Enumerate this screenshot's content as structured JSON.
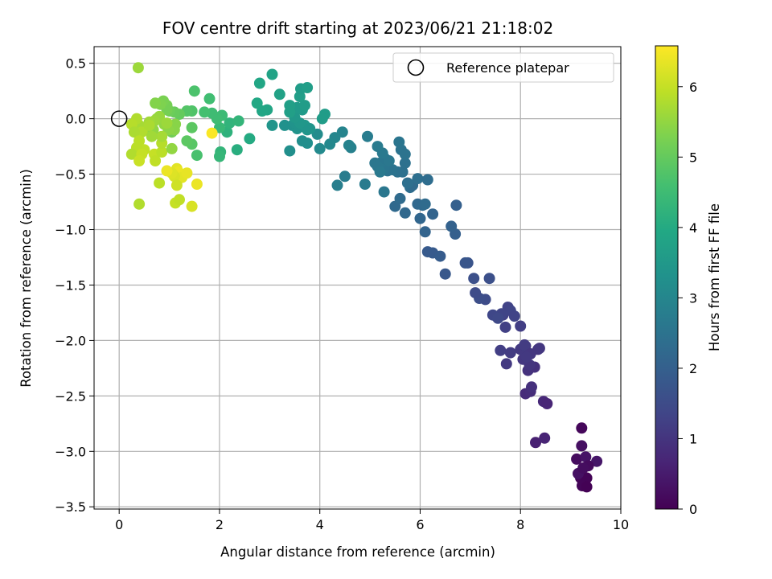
{
  "chart_data": {
    "type": "scatter",
    "title": "FOV centre drift starting at 2023/06/21 21:18:02",
    "xlabel": "Angular distance from reference (arcmin)",
    "ylabel": "Rotation from reference (arcmin)",
    "xlim": [
      -0.5,
      10
    ],
    "ylim": [
      -3.52,
      0.65
    ],
    "x_ticks": [
      0,
      2,
      4,
      6,
      8,
      10
    ],
    "x_tick_labels": [
      "0",
      "2",
      "4",
      "6",
      "8",
      "10"
    ],
    "y_ticks": [
      0.5,
      0.0,
      -0.5,
      -1.0,
      -1.5,
      -2.0,
      -2.5,
      -3.0,
      -3.5
    ],
    "y_tick_labels": [
      "0.5",
      "0.0",
      "−0.5",
      "−1.0",
      "−1.5",
      "−2.0",
      "−2.5",
      "−3.0",
      "−3.5"
    ],
    "grid": true,
    "legend": {
      "placement": "upper right",
      "entries": [
        "Reference platepar"
      ]
    },
    "reference_point": {
      "label": "Reference platepar",
      "x": 0.0,
      "y": 0.0,
      "marker": "open-circle"
    },
    "colorbar": {
      "label": "Hours from first FF file",
      "colormap": "viridis",
      "range": [
        0,
        6.58
      ],
      "ticks": [
        0,
        1,
        2,
        3,
        4,
        5,
        6
      ],
      "tick_labels": [
        "0",
        "1",
        "2",
        "3",
        "4",
        "5",
        "6"
      ]
    },
    "series": [
      {
        "columns": [
          "x",
          "y",
          "hours"
        ],
        "points": [
          [
            9.22,
            -2.79,
            0.12
          ],
          [
            9.12,
            -3.07,
            0.2
          ],
          [
            9.22,
            -2.95,
            0.28
          ],
          [
            9.3,
            -3.05,
            0.35
          ],
          [
            9.52,
            -3.09,
            0.4
          ],
          [
            9.35,
            -3.13,
            0.18
          ],
          [
            9.2,
            -3.24,
            0.1
          ],
          [
            9.32,
            -3.24,
            0.05
          ],
          [
            9.23,
            -3.31,
            0.08
          ],
          [
            9.32,
            -3.32,
            0.02
          ],
          [
            9.15,
            -3.2,
            0.3
          ],
          [
            9.25,
            -3.15,
            0.22
          ],
          [
            8.3,
            -2.92,
            0.6
          ],
          [
            8.48,
            -2.88,
            0.65
          ],
          [
            8.46,
            -2.55,
            0.75
          ],
          [
            8.53,
            -2.57,
            0.7
          ],
          [
            8.1,
            -2.48,
            0.8
          ],
          [
            8.2,
            -2.46,
            0.85
          ],
          [
            8.22,
            -2.42,
            0.9
          ],
          [
            8.15,
            -2.27,
            0.95
          ],
          [
            8.28,
            -2.24,
            0.9
          ],
          [
            8.18,
            -2.22,
            1.0
          ],
          [
            8.05,
            -2.17,
            1.05
          ],
          [
            8.0,
            -2.08,
            1.1
          ],
          [
            8.1,
            -2.05,
            1.1
          ],
          [
            8.35,
            -2.08,
            1.0
          ],
          [
            8.38,
            -2.07,
            1.05
          ],
          [
            8.08,
            -2.04,
            1.15
          ],
          [
            8.2,
            -2.12,
            1.05
          ],
          [
            8.12,
            -2.15,
            1.1
          ],
          [
            7.72,
            -2.21,
            1.1
          ],
          [
            7.6,
            -2.09,
            1.2
          ],
          [
            7.8,
            -2.11,
            1.15
          ],
          [
            8.0,
            -1.87,
            1.2
          ],
          [
            7.65,
            -1.77,
            1.25
          ],
          [
            7.7,
            -1.88,
            1.25
          ],
          [
            7.75,
            -1.7,
            1.3
          ],
          [
            7.8,
            -1.73,
            1.35
          ],
          [
            7.88,
            -1.78,
            1.3
          ],
          [
            7.62,
            -1.76,
            1.35
          ],
          [
            7.45,
            -1.77,
            1.4
          ],
          [
            7.55,
            -1.8,
            1.45
          ],
          [
            7.3,
            -1.63,
            1.5
          ],
          [
            7.18,
            -1.62,
            1.55
          ],
          [
            7.1,
            -1.57,
            1.5
          ],
          [
            7.38,
            -1.44,
            1.6
          ],
          [
            7.07,
            -1.44,
            1.6
          ],
          [
            6.95,
            -1.3,
            1.7
          ],
          [
            6.9,
            -1.3,
            1.75
          ],
          [
            6.5,
            -1.4,
            1.8
          ],
          [
            6.25,
            -1.21,
            1.85
          ],
          [
            6.4,
            -1.24,
            1.9
          ],
          [
            6.15,
            -1.2,
            1.85
          ],
          [
            6.7,
            -1.04,
            2.0
          ],
          [
            6.62,
            -0.97,
            2.05
          ],
          [
            6.1,
            -1.02,
            2.1
          ],
          [
            6.0,
            -0.9,
            2.15
          ],
          [
            6.25,
            -0.86,
            2.1
          ],
          [
            6.72,
            -0.78,
            2.0
          ],
          [
            5.7,
            -0.85,
            2.2
          ],
          [
            5.5,
            -0.79,
            2.25
          ],
          [
            5.6,
            -0.72,
            2.3
          ],
          [
            5.95,
            -0.77,
            2.2
          ],
          [
            6.05,
            -0.78,
            2.25
          ],
          [
            6.1,
            -0.77,
            2.3
          ],
          [
            5.8,
            -0.62,
            2.35
          ],
          [
            5.85,
            -0.6,
            2.3
          ],
          [
            5.75,
            -0.58,
            2.4
          ],
          [
            5.95,
            -0.54,
            2.4
          ],
          [
            6.15,
            -0.55,
            2.35
          ],
          [
            5.55,
            -0.48,
            2.45
          ],
          [
            5.45,
            -0.46,
            2.5
          ],
          [
            5.35,
            -0.47,
            2.5
          ],
          [
            5.65,
            -0.48,
            2.45
          ],
          [
            5.28,
            -0.45,
            2.55
          ],
          [
            5.1,
            -0.4,
            2.6
          ],
          [
            5.2,
            -0.4,
            2.6
          ],
          [
            5.3,
            -0.36,
            2.55
          ],
          [
            5.38,
            -0.38,
            2.6
          ],
          [
            5.25,
            -0.31,
            2.65
          ],
          [
            5.62,
            -0.28,
            2.5
          ],
          [
            5.7,
            -0.4,
            2.45
          ],
          [
            5.7,
            -0.32,
            2.5
          ],
          [
            5.58,
            -0.21,
            2.55
          ],
          [
            5.28,
            -0.66,
            2.6
          ],
          [
            4.9,
            -0.59,
            2.7
          ],
          [
            4.5,
            -0.52,
            2.75
          ],
          [
            4.35,
            -0.6,
            2.8
          ],
          [
            5.15,
            -0.43,
            2.6
          ],
          [
            5.2,
            -0.48,
            2.65
          ],
          [
            4.95,
            -0.16,
            2.75
          ],
          [
            5.15,
            -0.25,
            2.7
          ],
          [
            4.62,
            -0.26,
            2.85
          ],
          [
            4.58,
            -0.24,
            2.9
          ],
          [
            4.45,
            -0.12,
            2.95
          ],
          [
            4.3,
            -0.17,
            3.0
          ],
          [
            4.2,
            -0.23,
            3.05
          ],
          [
            4.0,
            -0.27,
            3.1
          ],
          [
            3.95,
            -0.14,
            3.15
          ],
          [
            3.75,
            -0.22,
            3.2
          ],
          [
            3.65,
            -0.2,
            3.2
          ],
          [
            3.4,
            -0.29,
            3.25
          ],
          [
            3.3,
            -0.06,
            3.3
          ],
          [
            3.45,
            -0.06,
            3.3
          ],
          [
            3.55,
            -0.09,
            3.35
          ],
          [
            3.5,
            -0.04,
            3.35
          ],
          [
            3.05,
            -0.06,
            3.4
          ],
          [
            3.8,
            -0.09,
            3.4
          ],
          [
            3.7,
            -0.06,
            3.45
          ],
          [
            3.75,
            -0.1,
            3.4
          ],
          [
            3.6,
            -0.04,
            3.45
          ],
          [
            3.5,
            0.01,
            3.5
          ],
          [
            3.65,
            0.08,
            3.55
          ],
          [
            3.55,
            0.1,
            3.55
          ],
          [
            3.7,
            0.12,
            3.6
          ],
          [
            3.6,
            0.2,
            3.65
          ],
          [
            3.62,
            0.27,
            3.6
          ],
          [
            3.75,
            0.28,
            3.65
          ],
          [
            4.1,
            0.04,
            3.6
          ],
          [
            4.05,
            0.0,
            3.6
          ],
          [
            3.4,
            0.12,
            3.7
          ],
          [
            3.4,
            0.06,
            3.7
          ],
          [
            3.2,
            0.22,
            3.75
          ],
          [
            3.05,
            0.4,
            3.8
          ],
          [
            2.95,
            0.08,
            3.85
          ],
          [
            2.85,
            0.07,
            3.9
          ],
          [
            2.8,
            0.32,
            3.9
          ],
          [
            2.75,
            0.14,
            3.95
          ],
          [
            2.6,
            -0.18,
            4.0
          ],
          [
            2.35,
            -0.28,
            4.1
          ],
          [
            2.15,
            -0.12,
            4.2
          ],
          [
            2.2,
            -0.04,
            4.25
          ],
          [
            2.38,
            -0.02,
            4.3
          ],
          [
            2.02,
            -0.3,
            4.3
          ],
          [
            2.0,
            -0.34,
            4.35
          ],
          [
            2.0,
            -0.08,
            4.4
          ],
          [
            2.05,
            0.03,
            4.45
          ],
          [
            1.95,
            0.0,
            4.5
          ],
          [
            1.85,
            0.05,
            4.5
          ],
          [
            1.8,
            0.18,
            4.55
          ],
          [
            1.7,
            0.06,
            4.6
          ],
          [
            1.55,
            -0.33,
            4.65
          ],
          [
            1.5,
            0.25,
            4.7
          ],
          [
            1.45,
            0.07,
            4.75
          ],
          [
            1.35,
            0.07,
            4.8
          ],
          [
            1.45,
            -0.23,
            4.85
          ],
          [
            1.35,
            -0.2,
            4.9
          ],
          [
            1.45,
            -0.08,
            4.9
          ],
          [
            1.2,
            0.04,
            5.0
          ],
          [
            1.1,
            0.06,
            5.05
          ],
          [
            1.0,
            0.07,
            5.1
          ],
          [
            1.05,
            -0.12,
            5.15
          ],
          [
            0.95,
            0.08,
            5.2
          ],
          [
            0.95,
            0.12,
            5.2
          ],
          [
            0.88,
            0.16,
            5.25
          ],
          [
            0.82,
            0.13,
            5.3
          ],
          [
            0.72,
            0.14,
            5.35
          ],
          [
            1.12,
            -0.05,
            5.4
          ],
          [
            1.1,
            -0.1,
            5.4
          ],
          [
            0.98,
            -0.1,
            5.45
          ],
          [
            0.9,
            -0.05,
            5.5
          ],
          [
            0.75,
            0.0,
            5.55
          ],
          [
            0.8,
            0.02,
            5.55
          ],
          [
            0.7,
            -0.02,
            5.6
          ],
          [
            0.6,
            -0.03,
            5.65
          ],
          [
            0.55,
            -0.1,
            5.7
          ],
          [
            0.4,
            -0.06,
            5.7
          ],
          [
            0.35,
            0.0,
            5.8
          ],
          [
            0.25,
            -0.05,
            5.85
          ],
          [
            0.45,
            -0.12,
            5.8
          ],
          [
            0.3,
            -0.12,
            5.75
          ],
          [
            0.4,
            -0.2,
            5.9
          ],
          [
            0.5,
            -0.28,
            5.95
          ],
          [
            0.35,
            -0.26,
            5.9
          ],
          [
            0.25,
            -0.32,
            5.8
          ],
          [
            0.45,
            -0.32,
            6.0
          ],
          [
            0.4,
            -0.38,
            6.05
          ],
          [
            0.7,
            -0.32,
            6.0
          ],
          [
            0.72,
            -0.38,
            5.95
          ],
          [
            0.85,
            -0.3,
            5.9
          ],
          [
            0.85,
            -0.22,
            5.85
          ],
          [
            0.85,
            -0.16,
            5.7
          ],
          [
            0.95,
            -0.04,
            5.6
          ],
          [
            0.68,
            -0.1,
            5.5
          ],
          [
            0.65,
            -0.16,
            5.65
          ],
          [
            0.6,
            -0.06,
            5.75
          ],
          [
            1.05,
            -0.27,
            5.5
          ],
          [
            1.15,
            -0.45,
            6.3
          ],
          [
            1.18,
            -0.48,
            6.4
          ],
          [
            1.25,
            -0.53,
            6.3
          ],
          [
            1.35,
            -0.49,
            6.35
          ],
          [
            1.1,
            -0.52,
            6.2
          ],
          [
            1.05,
            -0.49,
            6.25
          ],
          [
            0.95,
            -0.47,
            6.4
          ],
          [
            1.15,
            -0.6,
            6.1
          ],
          [
            1.12,
            -0.76,
            6.0
          ],
          [
            1.2,
            -0.73,
            5.95
          ],
          [
            1.45,
            -0.79,
            6.2
          ],
          [
            1.55,
            -0.59,
            6.4
          ],
          [
            0.8,
            -0.58,
            5.9
          ],
          [
            0.4,
            -0.77,
            5.8
          ],
          [
            0.38,
            0.46,
            5.6
          ],
          [
            1.85,
            -0.13,
            6.55
          ]
        ]
      }
    ]
  }
}
